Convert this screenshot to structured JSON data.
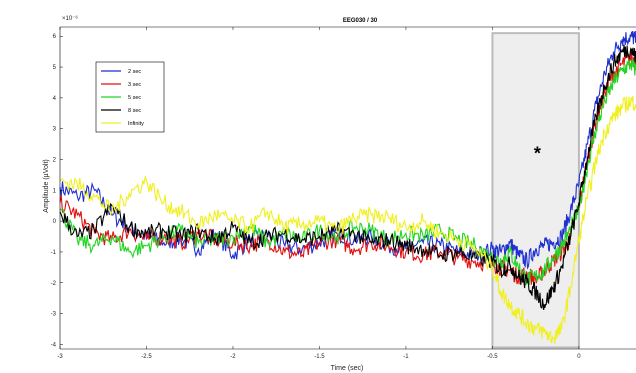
{
  "chart_data": {
    "type": "line",
    "title": "EEG030 / 30",
    "xlabel": "Time (sec)",
    "ylabel": "Amplitude (µVolt)",
    "y_exponent_label": "×10⁻⁶",
    "xlim": [
      -3,
      0.33
    ],
    "ylim": [
      -4.15,
      6.3
    ],
    "x_ticks": [
      -3,
      -2.5,
      -2,
      -1.5,
      -1,
      -0.5,
      0
    ],
    "x_tick_labels": [
      "-3",
      "-2.5",
      "-2",
      "-1.5",
      "-1",
      "-0.5",
      "0"
    ],
    "y_ticks": [
      -4,
      -3,
      -2,
      -1,
      0,
      1,
      2,
      3,
      4,
      5,
      6
    ],
    "y_tick_labels": [
      "-4",
      "-3",
      "-2",
      "-1",
      "0",
      "1",
      "2",
      "3",
      "4",
      "5",
      "6"
    ],
    "legend_position": "upper-left",
    "highlight_region": {
      "x": [
        -0.5,
        0
      ],
      "y": [
        -4.1,
        6.1
      ],
      "fill": "#eeeeee",
      "stroke": "#bbbbbb"
    },
    "annotation": {
      "text": "*",
      "x": -0.24,
      "y": 2.2
    },
    "series": [
      {
        "name": "2 sec",
        "color": "#1f2fd0",
        "x": [
          -3.0,
          -2.9,
          -2.8,
          -2.7,
          -2.6,
          -2.5,
          -2.4,
          -2.3,
          -2.2,
          -2.1,
          -2.0,
          -1.9,
          -1.8,
          -1.7,
          -1.6,
          -1.5,
          -1.4,
          -1.3,
          -1.2,
          -1.1,
          -1.0,
          -0.9,
          -0.8,
          -0.7,
          -0.6,
          -0.5,
          -0.45,
          -0.4,
          -0.35,
          -0.3,
          -0.25,
          -0.2,
          -0.15,
          -0.1,
          -0.05,
          0.0,
          0.05,
          0.1,
          0.15,
          0.2,
          0.25,
          0.3,
          0.33
        ],
        "y": [
          1.1,
          0.8,
          1.0,
          0.2,
          -0.2,
          -0.5,
          -0.7,
          -0.6,
          -0.9,
          -0.4,
          -1.1,
          -0.6,
          -0.5,
          -0.8,
          -0.9,
          -0.7,
          -0.4,
          -0.6,
          -0.5,
          -0.8,
          -0.9,
          -0.7,
          -0.8,
          -1.0,
          -1.1,
          -0.9,
          -1.0,
          -0.7,
          -1.1,
          -1.3,
          -0.9,
          -0.8,
          -0.7,
          -0.5,
          0.3,
          1.2,
          2.5,
          3.8,
          4.8,
          5.5,
          5.9,
          6.0,
          5.9
        ]
      },
      {
        "name": "3 sec",
        "color": "#e01010",
        "x": [
          -3.0,
          -2.9,
          -2.8,
          -2.7,
          -2.6,
          -2.5,
          -2.4,
          -2.3,
          -2.2,
          -2.1,
          -2.0,
          -1.9,
          -1.8,
          -1.7,
          -1.6,
          -1.5,
          -1.4,
          -1.3,
          -1.2,
          -1.1,
          -1.0,
          -0.9,
          -0.8,
          -0.7,
          -0.6,
          -0.5,
          -0.45,
          -0.4,
          -0.35,
          -0.3,
          -0.25,
          -0.2,
          -0.15,
          -0.1,
          -0.05,
          0.0,
          0.05,
          0.1,
          0.15,
          0.2,
          0.25,
          0.3,
          0.33
        ],
        "y": [
          0.6,
          0.2,
          -0.4,
          -0.6,
          -0.3,
          -0.6,
          -0.5,
          -0.7,
          -0.4,
          -0.6,
          -0.7,
          -0.8,
          -0.6,
          -1.0,
          -1.1,
          -0.7,
          -0.6,
          -0.9,
          -0.7,
          -0.8,
          -1.0,
          -1.1,
          -1.0,
          -1.2,
          -1.3,
          -1.4,
          -1.5,
          -1.6,
          -1.8,
          -1.7,
          -1.9,
          -1.6,
          -1.3,
          -1.0,
          -0.6,
          0.5,
          2.0,
          3.3,
          4.2,
          4.8,
          5.1,
          5.3,
          5.2
        ]
      },
      {
        "name": "5 sec",
        "color": "#22d422",
        "x": [
          -3.0,
          -2.9,
          -2.8,
          -2.7,
          -2.6,
          -2.5,
          -2.4,
          -2.3,
          -2.2,
          -2.1,
          -2.0,
          -1.9,
          -1.8,
          -1.7,
          -1.6,
          -1.5,
          -1.4,
          -1.3,
          -1.2,
          -1.1,
          -1.0,
          -0.9,
          -0.8,
          -0.7,
          -0.6,
          -0.5,
          -0.45,
          -0.4,
          -0.35,
          -0.3,
          -0.25,
          -0.2,
          -0.15,
          -0.1,
          -0.05,
          0.0,
          0.05,
          0.1,
          0.15,
          0.2,
          0.25,
          0.3,
          0.33
        ],
        "y": [
          0.4,
          -0.6,
          -0.8,
          -0.5,
          -1.0,
          -0.8,
          -0.5,
          -0.3,
          -0.7,
          -0.6,
          -0.5,
          -0.2,
          -0.7,
          -0.4,
          -0.6,
          -0.3,
          -0.5,
          -0.2,
          -0.3,
          -0.6,
          -0.4,
          -0.5,
          -0.3,
          -0.6,
          -0.8,
          -1.2,
          -1.3,
          -1.0,
          -1.5,
          -1.9,
          -1.8,
          -1.6,
          -1.2,
          -0.8,
          -0.3,
          0.4,
          1.8,
          3.0,
          3.9,
          4.5,
          4.9,
          5.1,
          4.9
        ]
      },
      {
        "name": "8 sec",
        "color": "#000000",
        "x": [
          -3.0,
          -2.9,
          -2.8,
          -2.7,
          -2.6,
          -2.5,
          -2.4,
          -2.3,
          -2.2,
          -2.1,
          -2.0,
          -1.9,
          -1.8,
          -1.7,
          -1.6,
          -1.5,
          -1.4,
          -1.3,
          -1.2,
          -1.1,
          -1.0,
          -0.9,
          -0.8,
          -0.7,
          -0.6,
          -0.5,
          -0.45,
          -0.4,
          -0.35,
          -0.3,
          -0.25,
          -0.2,
          -0.15,
          -0.1,
          -0.05,
          0.0,
          0.05,
          0.1,
          0.15,
          0.2,
          0.25,
          0.3,
          0.33
        ],
        "y": [
          0.3,
          -0.5,
          -0.3,
          0.5,
          -0.2,
          -0.4,
          -0.3,
          -0.5,
          -0.3,
          -0.6,
          -0.2,
          -0.7,
          -0.5,
          -0.4,
          -0.6,
          -0.5,
          -0.3,
          -0.4,
          -0.7,
          -0.6,
          -0.8,
          -0.9,
          -1.1,
          -1.0,
          -1.2,
          -1.3,
          -1.6,
          -1.4,
          -1.8,
          -2.0,
          -2.3,
          -2.7,
          -2.2,
          -1.5,
          -0.5,
          0.6,
          2.1,
          3.4,
          4.4,
          5.1,
          5.5,
          5.6,
          5.3
        ]
      },
      {
        "name": "Infinity",
        "color": "#f0f020",
        "x": [
          -3.0,
          -2.9,
          -2.8,
          -2.7,
          -2.6,
          -2.5,
          -2.4,
          -2.3,
          -2.2,
          -2.1,
          -2.0,
          -1.9,
          -1.8,
          -1.7,
          -1.6,
          -1.5,
          -1.4,
          -1.3,
          -1.2,
          -1.1,
          -1.0,
          -0.9,
          -0.8,
          -0.7,
          -0.6,
          -0.5,
          -0.45,
          -0.4,
          -0.35,
          -0.3,
          -0.25,
          -0.2,
          -0.15,
          -0.1,
          -0.05,
          0.0,
          0.05,
          0.1,
          0.15,
          0.2,
          0.25,
          0.3,
          0.33
        ],
        "y": [
          1.3,
          1.2,
          0.8,
          0.3,
          0.9,
          1.3,
          0.6,
          0.3,
          -0.1,
          0.2,
          0.0,
          -0.2,
          0.3,
          -0.2,
          -0.1,
          0.0,
          -0.3,
          0.1,
          0.2,
          0.1,
          -0.2,
          0.0,
          -0.4,
          -0.6,
          -0.9,
          -1.5,
          -2.3,
          -2.7,
          -3.0,
          -3.3,
          -3.5,
          -3.6,
          -3.8,
          -3.5,
          -2.2,
          -0.6,
          0.8,
          2.0,
          2.9,
          3.4,
          3.7,
          3.9,
          3.8
        ]
      }
    ]
  }
}
